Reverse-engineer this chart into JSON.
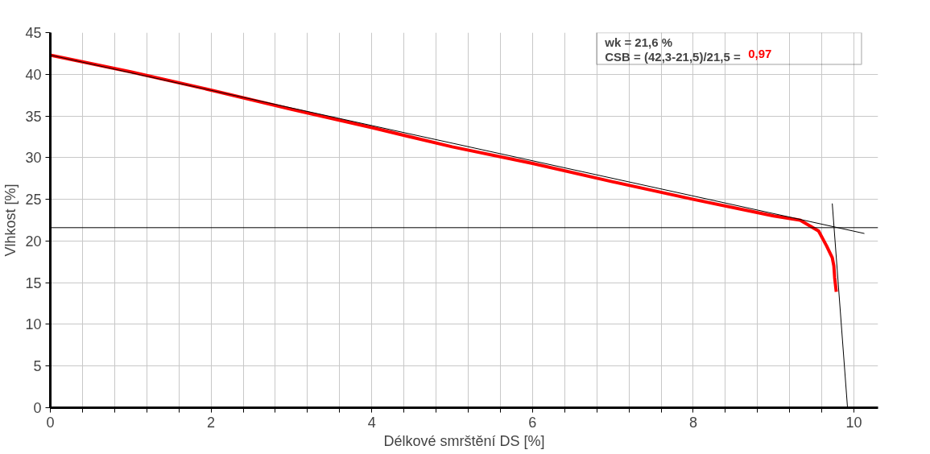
{
  "chart_data": {
    "type": "line",
    "xlabel": "Délkové smrštění DS [%]",
    "ylabel": "Vlhkost [%]",
    "annotations": [
      "wk = 21,6 %",
      "CSB = (42,3-21,5)/21,5 = ",
      "0,97"
    ],
    "series": [
      {
        "color": "#ff0000",
        "x": [
          0,
          1,
          2,
          3,
          4,
          5,
          6,
          7,
          8,
          9,
          9.33,
          9.56,
          9.66,
          9.73,
          9.75,
          9.76,
          9.78
        ],
        "values": [
          42.3,
          40.3,
          38.1,
          35.8,
          33.6,
          31.3,
          29.3,
          27.1,
          25.0,
          23.0,
          22.5,
          21.2,
          19.4,
          18.0,
          17.0,
          15.6,
          13.9
        ]
      },
      {
        "color": "#000000",
        "x": [
          0,
          10.13
        ],
        "values": [
          42.3,
          20.9
        ]
      },
      {
        "color": "#000000",
        "x": [
          9.73,
          9.92
        ],
        "values": [
          24.5,
          0
        ]
      }
    ],
    "ref_lines": [
      {
        "axis": "y",
        "value": 21.6,
        "color": "#000000"
      }
    ],
    "xlim": [
      0,
      10.3
    ],
    "ylim": [
      0,
      45
    ],
    "xticks": [
      0,
      {
        "value": 0.4,
        "label": null
      },
      {
        "value": 0.8,
        "label": null
      },
      {
        "value": 1.2,
        "label": null
      },
      {
        "value": 1.6,
        "label": null
      },
      2,
      {
        "value": 2.4,
        "label": null
      },
      {
        "value": 2.8,
        "label": null
      },
      {
        "value": 3.2,
        "label": null
      },
      {
        "value": 3.6,
        "label": null
      },
      4,
      {
        "value": 4.4,
        "label": null
      },
      {
        "value": 4.8,
        "label": null
      },
      {
        "value": 5.2,
        "label": null
      },
      {
        "value": 5.6,
        "label": null
      },
      6,
      {
        "value": 6.4,
        "label": null
      },
      {
        "value": 6.8,
        "label": null
      },
      {
        "value": 7.2,
        "label": null
      },
      {
        "value": 7.6,
        "label": null
      },
      8,
      {
        "value": 8.4,
        "label": null
      },
      {
        "value": 8.8,
        "label": null
      },
      {
        "value": 9.2,
        "label": null
      },
      {
        "value": 9.6,
        "label": null
      },
      10
    ],
    "yticks": [
      0,
      5,
      10,
      15,
      20,
      25,
      30,
      35,
      40,
      45
    ],
    "grid": true,
    "marker": "none",
    "line_style": "solid"
  }
}
